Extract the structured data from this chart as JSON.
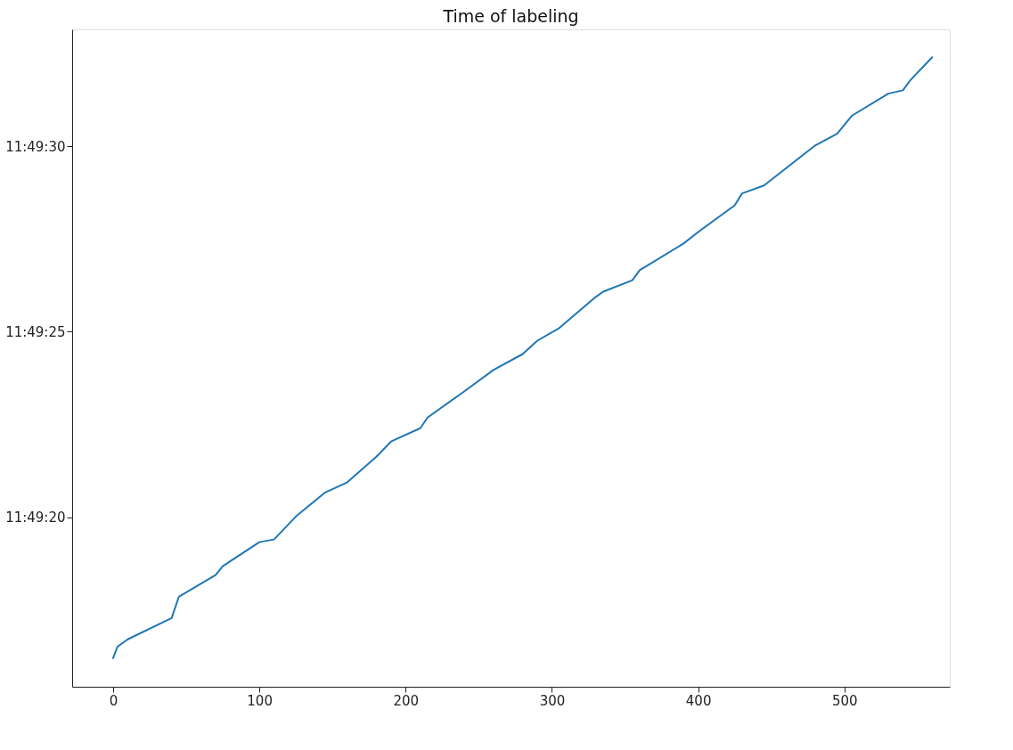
{
  "chart_data": {
    "type": "line",
    "title": "Time of labeling",
    "x": [
      0,
      3,
      10,
      40,
      45,
      70,
      75,
      100,
      110,
      125,
      145,
      160,
      180,
      190,
      210,
      215,
      240,
      260,
      280,
      290,
      305,
      330,
      335,
      355,
      360,
      390,
      400,
      425,
      430,
      445,
      480,
      495,
      505,
      530,
      540,
      545,
      560
    ],
    "series": [
      {
        "color": "#1f77b4",
        "values": [
          11.821167,
          11.821253,
          11.821308,
          11.821467,
          11.821628,
          11.821789,
          11.821856,
          11.822036,
          11.822056,
          11.822228,
          11.822408,
          11.822483,
          11.822675,
          11.822789,
          11.822889,
          11.822969,
          11.823164,
          11.823325,
          11.823444,
          11.823544,
          11.823639,
          11.823872,
          11.823911,
          11.823997,
          11.824072,
          11.824272,
          11.824358,
          11.824558,
          11.824647,
          11.824706,
          11.825006,
          11.825094,
          11.825228,
          11.825394,
          11.825419,
          11.825494,
          11.825667
        ]
      }
    ],
    "xlim": [
      -28,
      572
    ],
    "xticks": [
      0,
      100,
      200,
      300,
      400,
      500
    ],
    "ylim": [
      11.820953,
      11.825875
    ],
    "yticks": [
      {
        "value": 11.822222,
        "label": "11:49:20"
      },
      {
        "value": 11.823611,
        "label": "11:49:25"
      },
      {
        "value": 11.825,
        "label": "11:49:30"
      }
    ],
    "grid": false,
    "legend": false,
    "marker": "none",
    "line_style": "solid"
  }
}
